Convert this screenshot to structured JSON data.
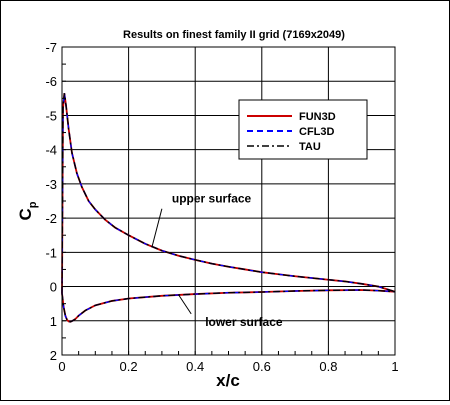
{
  "chart_data": {
    "type": "line",
    "title": "Results on finest family II grid (7169x2049)",
    "xlabel": "x/c",
    "ylabel_main": "C",
    "ylabel_sub": "p",
    "xlim": [
      0,
      1
    ],
    "ylim": [
      2,
      -7
    ],
    "y_inverted": true,
    "grid": true,
    "xticks": [
      0,
      0.2,
      0.4,
      0.6,
      0.8,
      1
    ],
    "xtick_labels": [
      "0",
      "0.2",
      "0.4",
      "0.6",
      "0.8",
      "1"
    ],
    "yticks": [
      -7,
      -6,
      -5,
      -4,
      -3,
      -2,
      -1,
      0,
      1,
      2
    ],
    "ytick_labels": [
      "-7",
      "-6",
      "-5",
      "-4",
      "-3",
      "-2",
      "-1",
      "0",
      "1",
      "2"
    ],
    "legend_position": "upper-right",
    "series": [
      {
        "name": "FUN3D",
        "color": "#cc0000",
        "dash": "solid"
      },
      {
        "name": "CFL3D",
        "color": "#0000ff",
        "dash": "dashed"
      },
      {
        "name": "TAU",
        "color": "#000000",
        "dash": "dashdot"
      }
    ],
    "upper_surface": {
      "x": [
        0,
        0.003,
        0.007,
        0.012,
        0.02,
        0.03,
        0.045,
        0.06,
        0.08,
        0.1,
        0.13,
        0.16,
        0.2,
        0.25,
        0.3,
        0.35,
        0.4,
        0.45,
        0.5,
        0.55,
        0.6,
        0.65,
        0.7,
        0.75,
        0.8,
        0.85,
        0.9,
        0.95,
        1.0
      ],
      "y": [
        0.2,
        -5.2,
        -5.65,
        -5.3,
        -4.6,
        -3.9,
        -3.3,
        -2.9,
        -2.5,
        -2.25,
        -1.95,
        -1.72,
        -1.5,
        -1.25,
        -1.05,
        -0.9,
        -0.78,
        -0.67,
        -0.58,
        -0.5,
        -0.42,
        -0.36,
        -0.3,
        -0.25,
        -0.2,
        -0.15,
        -0.08,
        0.0,
        0.15
      ]
    },
    "lower_surface": {
      "x": [
        0,
        0.005,
        0.01,
        0.015,
        0.02,
        0.025,
        0.03,
        0.04,
        0.05,
        0.07,
        0.1,
        0.15,
        0.2,
        0.3,
        0.4,
        0.5,
        0.6,
        0.7,
        0.8,
        0.9,
        0.95,
        1.0
      ],
      "y": [
        0.2,
        0.6,
        0.85,
        0.97,
        1.02,
        1.03,
        1.01,
        0.95,
        0.85,
        0.7,
        0.55,
        0.42,
        0.35,
        0.27,
        0.22,
        0.18,
        0.16,
        0.13,
        0.11,
        0.1,
        0.12,
        0.15
      ]
    },
    "annotations": [
      {
        "text": "upper surface",
        "target_x": 0.27,
        "target_y": -1.15,
        "label_x": 0.33,
        "label_y": -2.45
      },
      {
        "text": "lower surface",
        "target_x": 0.35,
        "target_y": 0.24,
        "label_x": 0.43,
        "label_y": 1.15
      }
    ]
  }
}
